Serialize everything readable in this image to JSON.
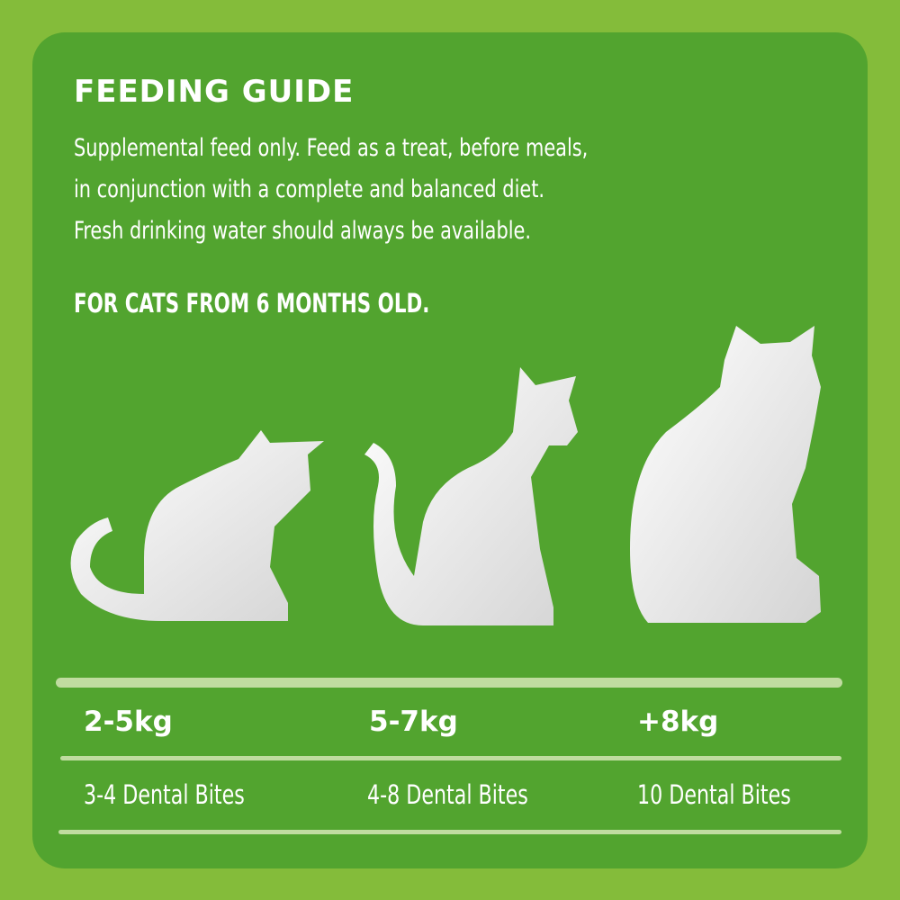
{
  "colors": {
    "background": "#84bc3a",
    "panel": "#52a42f",
    "divider": "#c0dca0",
    "text": "#ffffff"
  },
  "title": "FEEDING GUIDE",
  "description": [
    "Supplemental feed only. Feed as a treat, before meals,",
    "in conjunction with a complete and balanced diet.",
    "Fresh drinking water should always be available."
  ],
  "age_note": "FOR CATS FROM 6 MONTHS OLD.",
  "guide": [
    {
      "weight": "2-5kg",
      "amount": "3-4 Dental Bites",
      "icon": "small-cat-silhouette"
    },
    {
      "weight": "5-7kg",
      "amount": "4-8 Dental Bites",
      "icon": "medium-cat-silhouette"
    },
    {
      "weight": "+8kg",
      "amount": "10 Dental Bites",
      "icon": "large-cat-silhouette"
    }
  ]
}
